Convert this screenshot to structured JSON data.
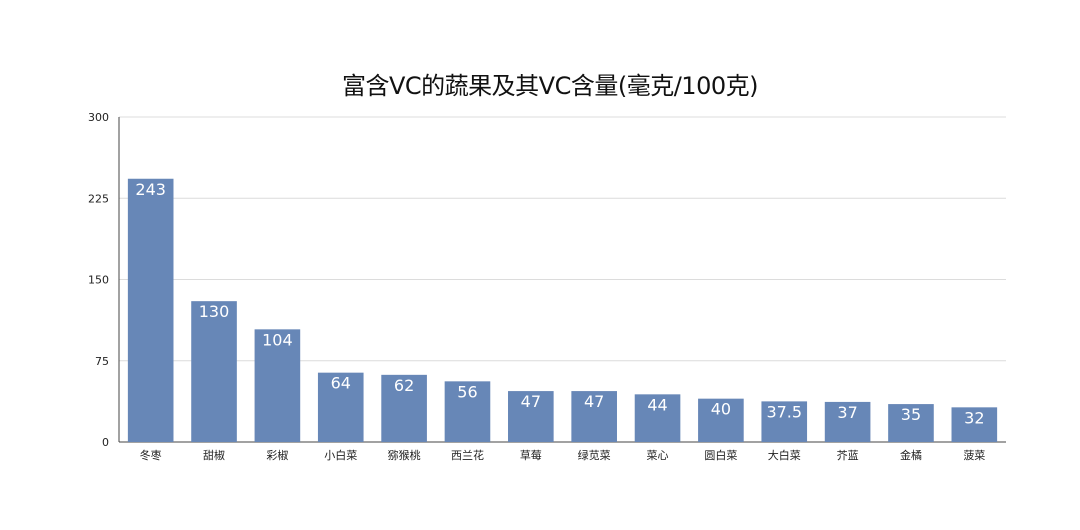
{
  "chart_data": {
    "type": "bar",
    "title": "富含VC的蔬果及其VC含量(毫克/100克)",
    "xlabel": "",
    "ylabel": "",
    "categories": [
      "冬枣",
      "甜椒",
      "彩椒",
      "小白菜",
      "猕猴桃",
      "西兰花",
      "草莓",
      "绿苋菜",
      "菜心",
      "圆白菜",
      "大白菜",
      "芥蓝",
      "金橘",
      "菠菜"
    ],
    "values": [
      243,
      130,
      104,
      64,
      62,
      56,
      47,
      47,
      44,
      40,
      37.5,
      37,
      35,
      32
    ],
    "data_labels": [
      "243",
      "130",
      "104",
      "64",
      "62",
      "56",
      "47",
      "47",
      "44",
      "40",
      "37.5",
      "37",
      "35",
      "32"
    ],
    "ylim": [
      0,
      300
    ],
    "yticks": [
      0,
      75,
      150,
      225,
      300
    ],
    "grid": true,
    "legend": "none",
    "colors": {
      "bar": "#6787b7",
      "bar_label": "#ffffff",
      "grid": "#dcdcdc",
      "axis": "#444444",
      "text": "#222222"
    }
  }
}
